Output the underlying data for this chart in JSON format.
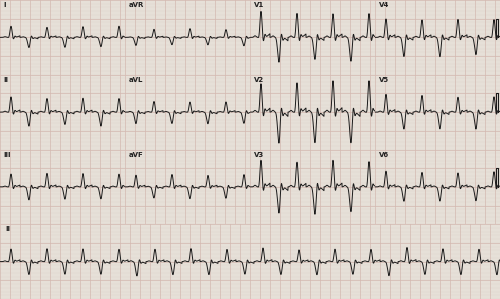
{
  "bg_color": "#e8e4dc",
  "grid_major_color": "#d4b8b0",
  "grid_minor_color": "#ddd0c8",
  "line_color": "#1a1a1a",
  "line_width": 0.7,
  "fig_width": 5.0,
  "fig_height": 2.99,
  "dpi": 100,
  "label_fontsize": 5.0,
  "label_color": "#222222",
  "beat_interval": 0.36,
  "fs": 400
}
